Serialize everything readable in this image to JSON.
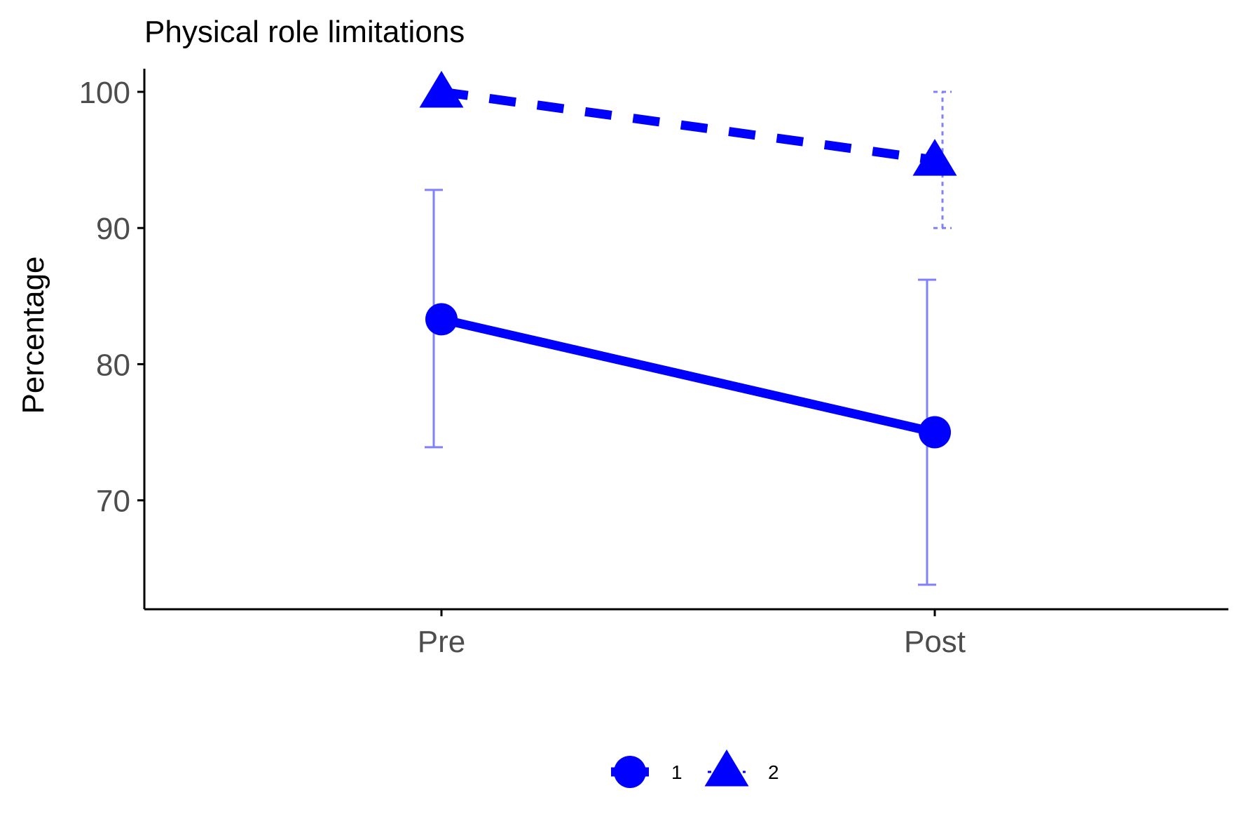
{
  "chart_data": {
    "type": "line",
    "title": "Physical role limitations",
    "xlabel": "",
    "ylabel": "Percentage",
    "categories": [
      "Pre",
      "Post"
    ],
    "ylim": [
      62,
      101.7
    ],
    "yticks": [
      70,
      80,
      90,
      100
    ],
    "ytick_labels": [
      "70",
      "80",
      "90",
      "100"
    ],
    "grid": false,
    "legend_position": "bottom",
    "colors": {
      "series": "#0000ff",
      "errorbar": "#8080ff",
      "axis": "#000000"
    },
    "series": [
      {
        "name": "1",
        "marker": "circle",
        "linestyle": "solid",
        "values": [
          83.3,
          75.0
        ],
        "error_low": [
          73.9,
          63.8
        ],
        "error_high": [
          92.8,
          86.2
        ]
      },
      {
        "name": "2",
        "marker": "triangle",
        "linestyle": "dashed",
        "values": [
          100.0,
          95.0
        ],
        "error_low": [
          100.0,
          90.0
        ],
        "error_high": [
          100.0,
          100.0
        ]
      }
    ]
  }
}
